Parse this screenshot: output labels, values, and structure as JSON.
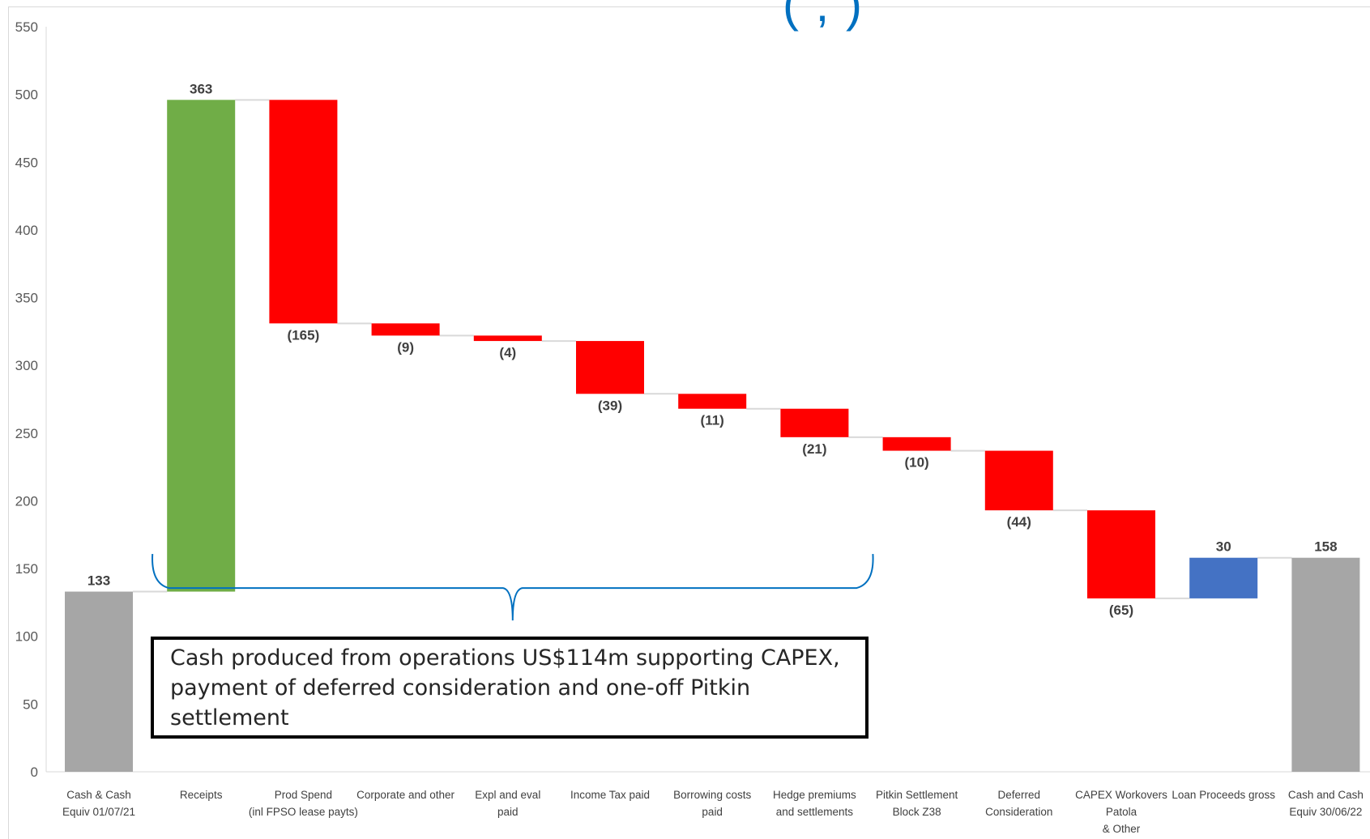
{
  "title_fragment": "( ,  )",
  "chart_data": {
    "type": "bar",
    "subtype": "waterfall",
    "ylim": [
      0,
      550
    ],
    "yticks": [
      0,
      50,
      100,
      150,
      200,
      250,
      300,
      350,
      400,
      450,
      500,
      550
    ],
    "grid": false,
    "categories": [
      [
        "Cash & Cash",
        "Equiv 01/07/21"
      ],
      [
        "Receipts"
      ],
      [
        "Prod Spend",
        "(inl FPSO lease payts)"
      ],
      [
        "Corporate and other"
      ],
      [
        "Expl and eval",
        "paid"
      ],
      [
        "Income Tax paid"
      ],
      [
        "Borrowing costs",
        "paid"
      ],
      [
        "Hedge premiums",
        "and settlements"
      ],
      [
        "Pitkin Settlement",
        "Block Z38"
      ],
      [
        "Deferred",
        "Consideration"
      ],
      [
        "CAPEX Workovers",
        "Patola",
        "& Other"
      ],
      [
        "Loan Proceeds gross"
      ],
      [
        "Cash and Cash",
        "Equiv 30/06/22"
      ]
    ],
    "values": [
      133,
      363,
      -165,
      -9,
      -4,
      -39,
      -11,
      -21,
      -10,
      -44,
      -65,
      30,
      158
    ],
    "kinds": [
      "total",
      "increase",
      "decrease",
      "decrease",
      "decrease",
      "decrease",
      "decrease",
      "decrease",
      "decrease",
      "decrease",
      "decrease",
      "increase",
      "total"
    ],
    "data_labels": [
      "133",
      "363",
      "(165)",
      "(9)",
      "(4)",
      "(39)",
      "(11)",
      "(21)",
      "(10)",
      "(44)",
      "(65)",
      "30",
      "158"
    ],
    "colors": {
      "total": "#a6a6a6",
      "receipts": "#70ad47",
      "decrease": "#ff0000",
      "loan": "#4472c4",
      "connector": "#d9d9d9",
      "brace": "#0070c0"
    }
  },
  "annotation": {
    "text": "Cash produced from operations US$114m supporting CAPEX,\npayment of deferred consideration and one-off Pitkin settlement",
    "brace_from_category": 1,
    "brace_to_category": 7
  }
}
